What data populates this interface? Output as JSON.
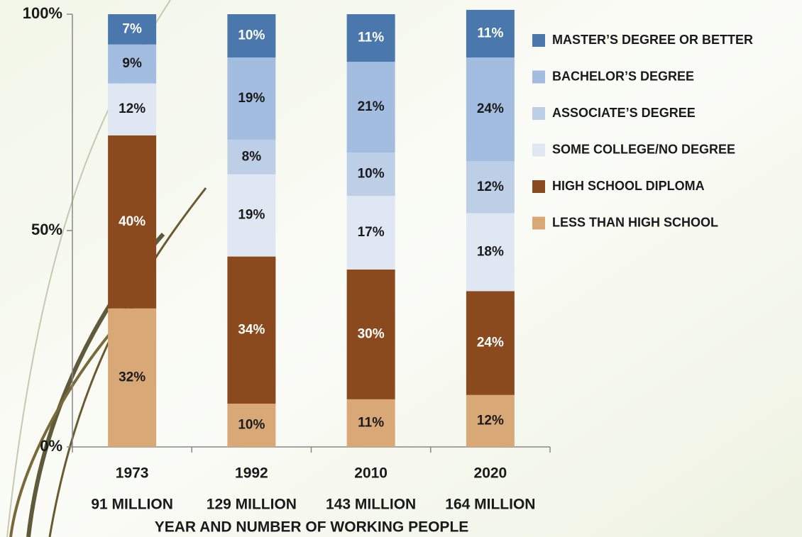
{
  "chart_data": {
    "type": "stacked_bar",
    "x_axis_title": "YEAR AND NUMBER OF WORKING PEOPLE",
    "categories": [
      "1973",
      "1992",
      "2010",
      "2020"
    ],
    "category_counts": [
      "91 MILLION",
      "129 MILLION",
      "143 MILLION",
      "164 MILLION"
    ],
    "ylim": [
      0,
      100
    ],
    "yticks": [
      {
        "value": 0,
        "label": "0%"
      },
      {
        "value": 50,
        "label": "50%"
      },
      {
        "value": 100,
        "label": "100%"
      }
    ],
    "series": [
      {
        "name": "LESS THAN HIGH SCHOOL",
        "color": "#d9a877",
        "values": [
          32,
          10,
          11,
          12
        ],
        "value_labels": [
          "32%",
          "10%",
          "11%",
          "12%"
        ]
      },
      {
        "name": "HIGH SCHOOL DIPLOMA",
        "color": "#8b4a1e",
        "values": [
          40,
          34,
          30,
          24
        ],
        "value_labels": [
          "40%",
          "34%",
          "30%",
          "24%"
        ]
      },
      {
        "name": "SOME COLLEGE/NO DEGREE",
        "color": "#dfe7f3",
        "values": [
          12,
          19,
          17,
          18
        ],
        "value_labels": [
          "12%",
          "19%",
          "17%",
          "18%"
        ]
      },
      {
        "name": "ASSOCIATE’S DEGREE",
        "color": "#bccfe7",
        "values": [
          null,
          8,
          10,
          12
        ],
        "value_labels": [
          null,
          "8%",
          "10%",
          "12%"
        ]
      },
      {
        "name": "BACHELOR’S DEGREE",
        "color": "#a3bde0",
        "values": [
          9,
          19,
          21,
          24
        ],
        "value_labels": [
          "9%",
          "19%",
          "21%",
          "24%"
        ]
      },
      {
        "name": "MASTER’S DEGREE OR BETTER",
        "color": "#4a78ad",
        "values": [
          7,
          10,
          11,
          11
        ],
        "value_labels": [
          "7%",
          "10%",
          "11%",
          "11%"
        ]
      }
    ]
  }
}
